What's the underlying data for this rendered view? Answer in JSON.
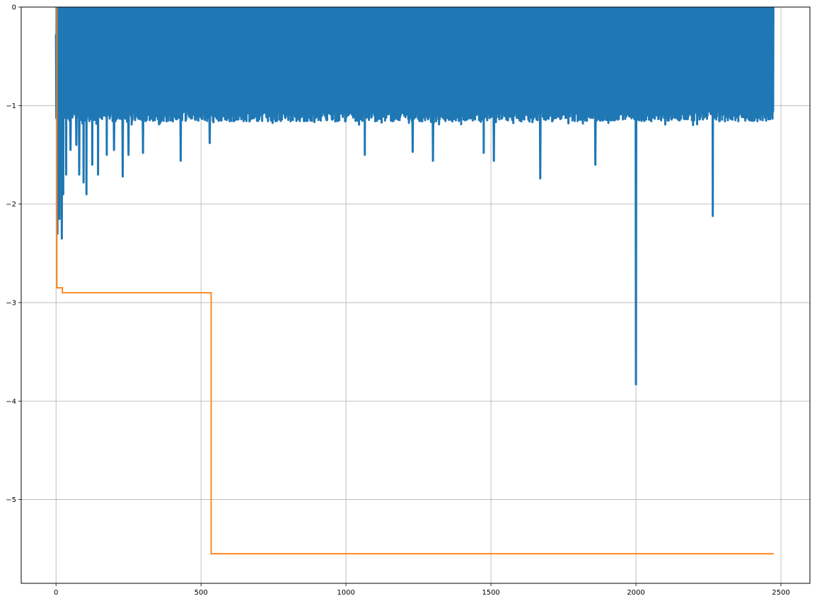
{
  "chart_data": {
    "type": "line",
    "title": "",
    "xlabel": "",
    "ylabel": "",
    "xlim": [
      -120,
      2600
    ],
    "ylim": [
      -5.85,
      0
    ],
    "xticks": [
      0,
      500,
      1000,
      1500,
      2000,
      2500
    ],
    "yticks": [
      0,
      -1,
      -2,
      -3,
      -4,
      -5
    ],
    "xtick_labels": [
      "0",
      "500",
      "1000",
      "1500",
      "2000",
      "2500"
    ],
    "ytick_labels": [
      "0",
      "−1",
      "−2",
      "−3",
      "−4",
      "−5"
    ],
    "grid": true,
    "legend": "none",
    "series": [
      {
        "color": "#1f77b4",
        "style": "noisy",
        "n_points": 2475,
        "upper_value": 0,
        "typical_lower_value": -1.1,
        "dips": [
          {
            "x": 5,
            "y": -2.3
          },
          {
            "x": 12,
            "y": -2.15
          },
          {
            "x": 20,
            "y": -2.35
          },
          {
            "x": 25,
            "y": -1.9
          },
          {
            "x": 35,
            "y": -1.7
          },
          {
            "x": 50,
            "y": -1.45
          },
          {
            "x": 70,
            "y": -1.4
          },
          {
            "x": 80,
            "y": -1.7
          },
          {
            "x": 95,
            "y": -1.78
          },
          {
            "x": 105,
            "y": -1.9
          },
          {
            "x": 125,
            "y": -1.6
          },
          {
            "x": 145,
            "y": -1.7
          },
          {
            "x": 175,
            "y": -1.5
          },
          {
            "x": 200,
            "y": -1.45
          },
          {
            "x": 230,
            "y": -1.72
          },
          {
            "x": 250,
            "y": -1.5
          },
          {
            "x": 300,
            "y": -1.48
          },
          {
            "x": 430,
            "y": -1.56
          },
          {
            "x": 530,
            "y": -1.38
          },
          {
            "x": 1065,
            "y": -1.5
          },
          {
            "x": 1230,
            "y": -1.47
          },
          {
            "x": 1300,
            "y": -1.56
          },
          {
            "x": 1475,
            "y": -1.48
          },
          {
            "x": 1510,
            "y": -1.56
          },
          {
            "x": 1670,
            "y": -1.74
          },
          {
            "x": 1860,
            "y": -1.6
          },
          {
            "x": 2000,
            "y": -3.83
          },
          {
            "x": 2265,
            "y": -2.12
          }
        ]
      },
      {
        "color": "#ff7f0e",
        "style": "step",
        "x": [
          0,
          3,
          3,
          22,
          22,
          535,
          535,
          2475
        ],
        "y": [
          0,
          0,
          -2.85,
          -2.85,
          -2.9,
          -2.9,
          -5.55,
          -5.55
        ]
      }
    ]
  }
}
